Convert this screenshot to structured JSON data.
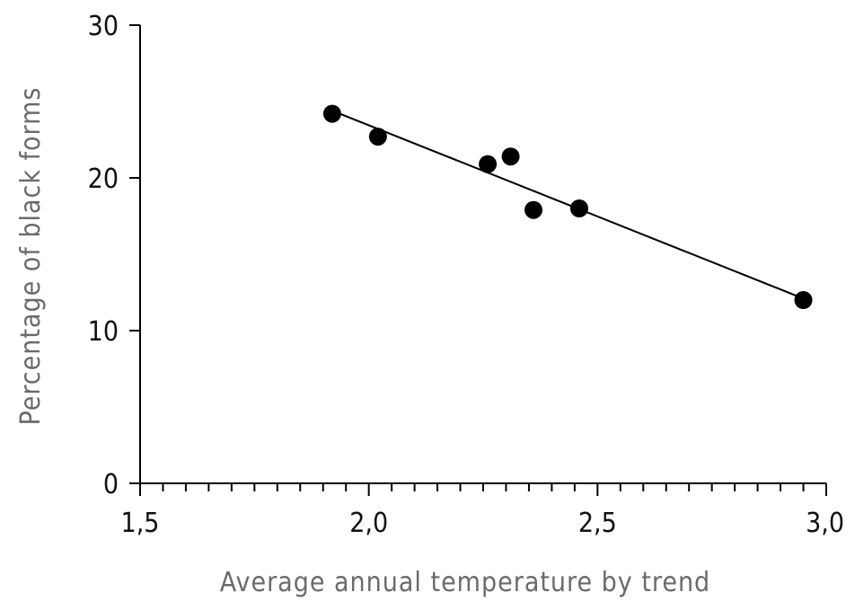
{
  "chart_data": {
    "type": "scatter",
    "title": "",
    "xlabel": "Average annual temperature by trend",
    "ylabel": "Percentage of black forms",
    "xlim": [
      1.5,
      3.0
    ],
    "ylim": [
      0,
      30
    ],
    "x_ticks": [
      1.5,
      2.0,
      2.5,
      3.0
    ],
    "x_tick_labels": [
      "1,5",
      "2,0",
      "2,5",
      "3,0"
    ],
    "x_minor_step": 0.05,
    "y_ticks": [
      0,
      10,
      20,
      30
    ],
    "y_tick_labels": [
      "0",
      "10",
      "20",
      "30"
    ],
    "grid": false,
    "legend": "none",
    "series": [
      {
        "points": [
          {
            "x": 1.92,
            "y": 24.2
          },
          {
            "x": 2.02,
            "y": 22.7
          },
          {
            "x": 2.26,
            "y": 20.9
          },
          {
            "x": 2.31,
            "y": 21.4
          },
          {
            "x": 2.36,
            "y": 17.9
          },
          {
            "x": 2.46,
            "y": 18.0
          },
          {
            "x": 2.95,
            "y": 12.0
          }
        ]
      }
    ],
    "trend_line": {
      "x": [
        1.92,
        2.95
      ],
      "y": [
        24.4,
        12.1
      ]
    },
    "colors": {
      "points": "#000000",
      "line": "#000000",
      "axis": "#000000",
      "axis_title": "#6b6b6b"
    }
  }
}
